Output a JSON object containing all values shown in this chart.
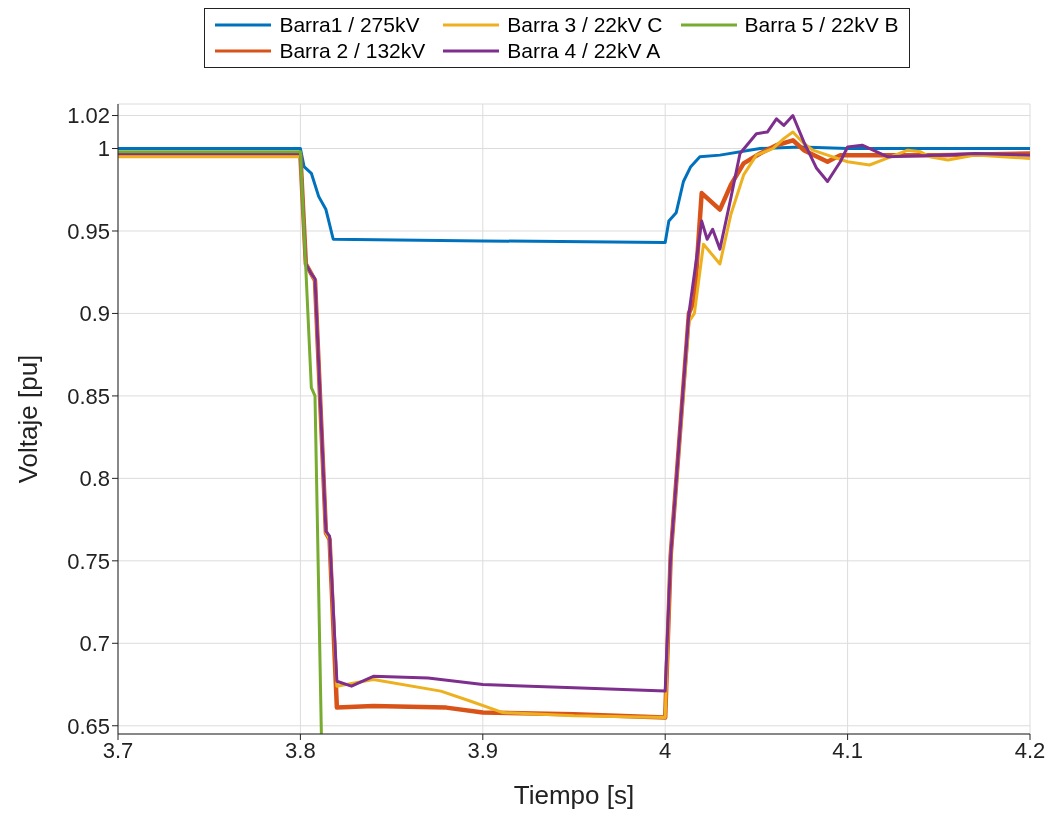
{
  "chart_data": {
    "type": "line",
    "xlabel": "Tiempo [s]",
    "ylabel": "Voltaje [pu]",
    "xlim": [
      3.7,
      4.2
    ],
    "xticks": [
      3.7,
      3.8,
      3.9,
      4,
      4.1,
      4.2
    ],
    "ylim": [
      0.645,
      1.027
    ],
    "yticks": [
      0.65,
      0.7,
      0.75,
      0.8,
      0.85,
      0.9,
      0.95,
      1,
      1.02
    ],
    "grid": true,
    "legend": "top",
    "marker": "none",
    "line_style": "solid",
    "series": [
      {
        "name": "Barra1 / 275kV",
        "color": "#0072bd",
        "x": [
          3.7,
          3.8,
          3.802,
          3.806,
          3.81,
          3.814,
          3.818,
          3.9,
          4,
          4.002,
          4.006,
          4.01,
          4.014,
          4.019,
          4.03,
          4.052,
          4.074,
          4.1,
          4.2
        ],
        "values": [
          1,
          1,
          0.989,
          0.985,
          0.971,
          0.963,
          0.945,
          0.944,
          0.943,
          0.956,
          0.961,
          0.98,
          0.989,
          0.995,
          0.996,
          1,
          1.001,
          1,
          1
        ]
      },
      {
        "name": "Barra 2 / 132kV",
        "color": "#d95319",
        "x": [
          3.7,
          3.8,
          3.803,
          3.806,
          3.808,
          3.814,
          3.816,
          3.82,
          3.84,
          3.88,
          3.9,
          3.95,
          4,
          4.003,
          4.013,
          4.016,
          4.02,
          4.03,
          4.036,
          4.043,
          4.052,
          4.061,
          4.07,
          4.076,
          4.089,
          4.096,
          4.15,
          4.2
        ],
        "values": [
          0.996,
          0.996,
          0.93,
          0.924,
          0.92,
          0.767,
          0.763,
          0.661,
          0.662,
          0.661,
          0.658,
          0.657,
          0.655,
          0.753,
          0.9,
          0.908,
          0.973,
          0.963,
          0.978,
          0.991,
          0.997,
          1.002,
          1.005,
          0.999,
          0.992,
          0.996,
          0.996,
          0.997
        ]
      },
      {
        "name": "Barra 3 / 22kV C",
        "color": "#edb120",
        "x": [
          3.7,
          3.8,
          3.803,
          3.806,
          3.808,
          3.814,
          3.816,
          3.82,
          3.84,
          3.877,
          3.893,
          3.911,
          3.95,
          4,
          4.003,
          4.013,
          4.016,
          4.021,
          4.03,
          4.036,
          4.043,
          4.05,
          4.059,
          4.065,
          4.07,
          4.076,
          4.081,
          4.089,
          4.1,
          4.112,
          4.119,
          4.133,
          4.14,
          4.145,
          4.155,
          4.17,
          4.2
        ],
        "values": [
          0.995,
          0.995,
          0.93,
          0.924,
          0.92,
          0.767,
          0.763,
          0.674,
          0.678,
          0.671,
          0.665,
          0.658,
          0.656,
          0.655,
          0.753,
          0.895,
          0.9,
          0.942,
          0.93,
          0.96,
          0.984,
          0.996,
          1,
          1.006,
          1.01,
          1.003,
          0.999,
          0.996,
          0.992,
          0.99,
          0.993,
          0.999,
          0.998,
          0.995,
          0.993,
          0.996,
          0.994
        ]
      },
      {
        "name": "Barra 4 / 22kV A",
        "color": "#7e2f8e",
        "x": [
          3.7,
          3.8,
          3.803,
          3.806,
          3.808,
          3.814,
          3.816,
          3.82,
          3.828,
          3.84,
          3.87,
          3.9,
          3.95,
          4,
          4.003,
          4.013,
          4.02,
          4.023,
          4.026,
          4.03,
          4.036,
          4.041,
          4.05,
          4.056,
          4.061,
          4.065,
          4.07,
          4.076,
          4.083,
          4.089,
          4.096,
          4.1,
          4.108,
          4.122,
          4.15,
          4.17,
          4.2
        ],
        "values": [
          0.997,
          0.997,
          0.93,
          0.924,
          0.921,
          0.768,
          0.765,
          0.677,
          0.674,
          0.68,
          0.679,
          0.675,
          0.673,
          0.671,
          0.753,
          0.9,
          0.956,
          0.945,
          0.951,
          0.939,
          0.97,
          0.997,
          1.009,
          1.01,
          1.018,
          1.014,
          1.02,
          1.004,
          0.988,
          0.98,
          0.992,
          1.001,
          1.002,
          0.995,
          0.996,
          0.997,
          0.996
        ]
      },
      {
        "name": "Barra 5 / 22kV B",
        "color": "#77ac30",
        "x": [
          3.7,
          3.8,
          3.806,
          3.808,
          3.8115
        ],
        "values": [
          0.998,
          0.998,
          0.855,
          0.85,
          0.645
        ]
      }
    ]
  }
}
